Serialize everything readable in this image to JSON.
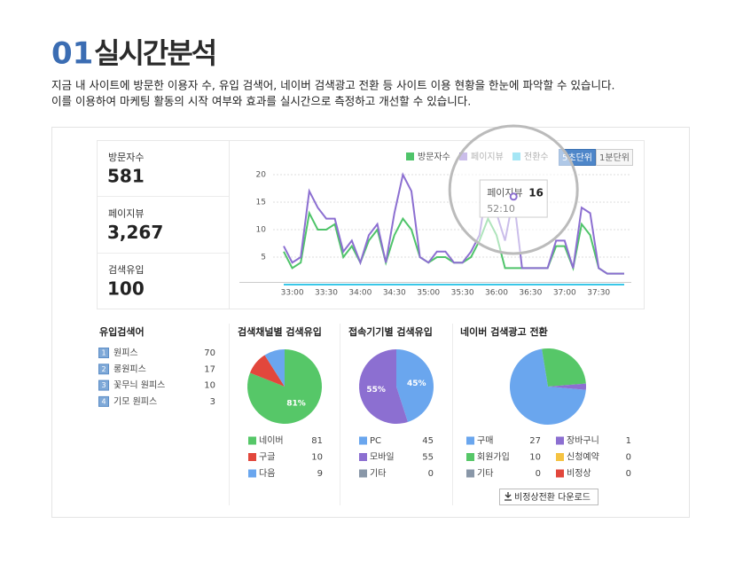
{
  "header": {
    "number": "01",
    "title": "실시간분석",
    "description": [
      "지금 내 사이트에 방문한 이용자 수, 유입 검색어, 네이버 검색광고 전환 등 사이트 이용 현황을 한눈에 파악할 수 있습니다.",
      "이를 이용하여 마케팅 활동의 시작 여부와 효과를 실시간으로 측정하고 개선할 수 있습니다."
    ]
  },
  "stats": [
    {
      "label": "방문자수",
      "value": "581"
    },
    {
      "label": "페이지뷰",
      "value": "3,267"
    },
    {
      "label": "검색유입",
      "value": "100"
    }
  ],
  "realtime_chart": {
    "type": "line",
    "buttons": [
      "5초단위",
      "1분단위"
    ],
    "categories": [
      null,
      "33:00",
      null,
      null,
      null,
      "33:30",
      null,
      null,
      null,
      "34:00",
      null,
      null,
      null,
      "34:30",
      null,
      null,
      null,
      "35:00",
      null,
      null,
      null,
      "35:30",
      null,
      null,
      null,
      "36:00",
      null,
      null,
      null,
      "36:30",
      null,
      null,
      null,
      "37:00",
      null,
      null,
      null,
      "37:30",
      null,
      null,
      null
    ],
    "ylim": [
      0,
      20
    ],
    "yticks": [
      5,
      10,
      15,
      20
    ],
    "grid": true,
    "series": [
      {
        "name": "방문자수",
        "color": "#4fc46a",
        "values": [
          6,
          3,
          4,
          13,
          10,
          10,
          11,
          5,
          7,
          4,
          8,
          10,
          4,
          9,
          12,
          10,
          5,
          4,
          5,
          5,
          4,
          4,
          5,
          8,
          12,
          9,
          3,
          3,
          3,
          3,
          3,
          3,
          7,
          7,
          3,
          11,
          9,
          3,
          2,
          2,
          2
        ]
      },
      {
        "name": "페이지뷰",
        "color": "#8c6fd1",
        "values": [
          7,
          4,
          5,
          17,
          14,
          12,
          12,
          6,
          8,
          4,
          9,
          11,
          4,
          13,
          20,
          17,
          5,
          4,
          6,
          6,
          4,
          4,
          6,
          9,
          19,
          13,
          8,
          16,
          3,
          3,
          3,
          3,
          8,
          8,
          3,
          14,
          13,
          3,
          2,
          2,
          2
        ]
      },
      {
        "name": "전환수",
        "color": "#39c7e8",
        "values": [
          0,
          0,
          0,
          0,
          0,
          0,
          0,
          0,
          0,
          0,
          0,
          0,
          0,
          0,
          0,
          0,
          0,
          0,
          0,
          0,
          0,
          0,
          0,
          0,
          0,
          0,
          0,
          0,
          0,
          0,
          0,
          0,
          0,
          0,
          0,
          0,
          0,
          0,
          0,
          0,
          0
        ]
      }
    ],
    "tooltip": {
      "series": 1,
      "index": 27,
      "time": "52:10"
    }
  },
  "keywords": {
    "title": "유입검색어",
    "rows": [
      {
        "rank": "1",
        "term": "원피스",
        "count": "70"
      },
      {
        "rank": "2",
        "term": "롱원피스",
        "count": "17"
      },
      {
        "rank": "3",
        "term": "꽃무늬 원피스",
        "count": "10"
      },
      {
        "rank": "4",
        "term": "기모 원피스",
        "count": "3"
      }
    ]
  },
  "pies": [
    {
      "type": "pie",
      "title": "검색채널별 검색유입",
      "labels": [
        "네이버",
        "구글",
        "다음"
      ],
      "values": [
        81,
        10,
        9
      ],
      "colors": [
        "#56c768",
        "#e2473c",
        "#6aa6ee"
      ],
      "value_labels": [
        "81%",
        null,
        null
      ]
    },
    {
      "type": "pie",
      "title": "접속기기별 검색유입",
      "labels": [
        "PC",
        "모바일",
        "기타"
      ],
      "values": [
        45,
        55,
        0
      ],
      "colors": [
        "#6aa6ee",
        "#8c6fd1",
        "#8997a8"
      ],
      "value_labels": [
        "45%",
        "55%",
        null
      ]
    },
    {
      "type": "pie",
      "title": "네이버 검색광고 전환",
      "labels": [
        "구매",
        "회원가입",
        "기타",
        "장바구니",
        "신청예약",
        "비정상"
      ],
      "values": [
        27,
        10,
        0,
        1,
        0,
        0
      ],
      "colors": [
        "#6aa6ee",
        "#56c768",
        "#8997a8",
        "#8c6fd1",
        "#f5c342",
        "#e2473c"
      ]
    }
  ],
  "download_button": "비정상전환 다운로드"
}
